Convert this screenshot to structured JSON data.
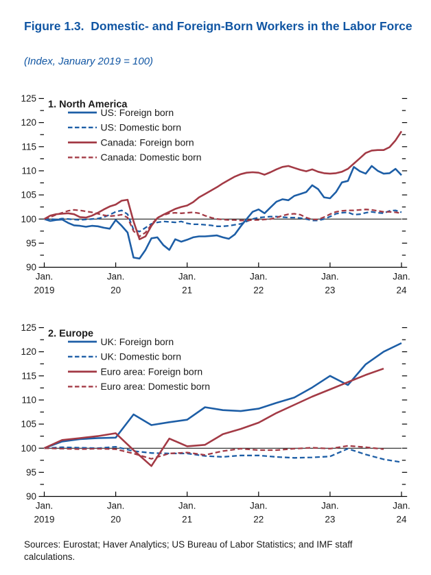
{
  "figure": {
    "title": "Figure 1.3.  Domestic- and Foreign-Born Workers in the Labor Force",
    "subtitle": "(Index, January 2019 = 100)",
    "sources": "Sources: Eurostat; Haver Analytics; US Bureau of Labor Statistics; and IMF staff calculations."
  },
  "colors": {
    "title_blue": "#1156a3",
    "blue": "#1d5ea6",
    "red": "#a33a45",
    "axis": "#000000",
    "text": "#1a1a1a"
  },
  "x_axis": {
    "unit": "months since January 2019",
    "tick_labels": [
      {
        "month": "Jan.",
        "year": "2019"
      },
      {
        "month": "Jan.",
        "year": "20"
      },
      {
        "month": "Jan.",
        "year": "21"
      },
      {
        "month": "Jan.",
        "year": "22"
      },
      {
        "month": "Jan.",
        "year": "23"
      },
      {
        "month": "Jan.",
        "year": "24"
      }
    ]
  },
  "y_axis": {
    "min": 90,
    "max": 125,
    "major_step": 5,
    "minor_step": 2.5,
    "baseline": 100
  },
  "chart_data": [
    {
      "type": "line",
      "panel_title": "1. North America",
      "frequency": "monthly",
      "x_start_month": 0,
      "x_step_months": 1,
      "ylim": [
        90,
        125
      ],
      "grid": false,
      "legend_position": "top-left",
      "series": [
        {
          "name": "US: Foreign born",
          "color": "blue",
          "line": "solid",
          "values": [
            100,
            99.6,
            99.8,
            99.9,
            99.2,
            98.7,
            98.6,
            98.4,
            98.6,
            98.5,
            98.2,
            98.0,
            99.8,
            98.6,
            97.2,
            92.0,
            91.8,
            93.6,
            96.0,
            96.2,
            94.6,
            93.6,
            95.8,
            95.3,
            95.7,
            96.2,
            96.4,
            96.4,
            96.5,
            96.6,
            96.2,
            95.9,
            96.8,
            98.5,
            100.0,
            101.5,
            102.0,
            101.2,
            102.4,
            103.6,
            104.1,
            103.9,
            104.8,
            105.2,
            105.6,
            107.0,
            106.2,
            104.5,
            104.3,
            105.6,
            107.6,
            107.9,
            110.8,
            109.9,
            109.4,
            111.0,
            110.0,
            109.4,
            109.5,
            110.4,
            109.1
          ]
        },
        {
          "name": "US: Domestic born",
          "color": "blue",
          "line": "dashed",
          "values": [
            100,
            100.0,
            99.9,
            100.1,
            100.0,
            99.9,
            99.8,
            99.9,
            100.0,
            100.1,
            100.4,
            100.9,
            101.5,
            101.8,
            101.0,
            97.8,
            97.4,
            98.2,
            99.0,
            99.3,
            99.5,
            99.4,
            99.3,
            99.5,
            99.1,
            98.9,
            98.9,
            98.8,
            98.7,
            98.5,
            98.5,
            98.6,
            98.8,
            99.0,
            99.5,
            100.0,
            100.3,
            100.4,
            100.5,
            100.5,
            100.4,
            100.3,
            100.3,
            100.2,
            100.0,
            99.7,
            99.7,
            100.0,
            100.5,
            101.1,
            101.3,
            101.4,
            100.9,
            101.0,
            101.3,
            101.5,
            101.3,
            101.2,
            101.7,
            101.8,
            101.4
          ]
        },
        {
          "name": "Canada: Foreign born",
          "color": "red",
          "line": "solid",
          "values": [
            100,
            100.7,
            101.0,
            101.1,
            101.2,
            101.0,
            100.4,
            100.3,
            100.7,
            101.3,
            102.0,
            102.6,
            103.0,
            103.8,
            104.0,
            99.5,
            95.8,
            96.4,
            98.6,
            100.2,
            100.9,
            101.5,
            102.1,
            102.5,
            102.8,
            103.5,
            104.5,
            105.2,
            105.9,
            106.6,
            107.4,
            108.1,
            108.8,
            109.3,
            109.6,
            109.7,
            109.6,
            109.2,
            109.7,
            110.3,
            110.8,
            111.0,
            110.6,
            110.2,
            109.9,
            110.3,
            109.8,
            109.5,
            109.4,
            109.5,
            109.8,
            110.4,
            111.5,
            112.6,
            113.7,
            114.2,
            114.3,
            114.3,
            114.9,
            116.3,
            118.2
          ]
        },
        {
          "name": "Canada: Domestic born",
          "color": "red",
          "line": "dashed",
          "values": [
            100,
            100.4,
            100.9,
            101.3,
            101.7,
            101.9,
            101.8,
            101.6,
            101.4,
            101.1,
            100.8,
            100.6,
            100.7,
            100.9,
            100.3,
            97.5,
            96.4,
            97.2,
            98.8,
            100.3,
            100.8,
            101.2,
            101.3,
            101.2,
            101.3,
            101.4,
            101.2,
            100.7,
            100.3,
            100.0,
            99.9,
            99.8,
            99.8,
            99.7,
            99.7,
            99.8,
            99.8,
            99.9,
            100.0,
            100.3,
            100.7,
            101.0,
            101.1,
            100.9,
            100.3,
            99.9,
            99.9,
            100.4,
            101.0,
            101.5,
            101.7,
            101.8,
            101.8,
            101.9,
            102.0,
            101.9,
            101.7,
            101.5,
            101.5,
            101.4,
            101.2
          ]
        }
      ]
    },
    {
      "type": "line",
      "panel_title": "2. Europe",
      "frequency": "quarterly",
      "x_start_month": 0,
      "x_step_months": 3,
      "ylim": [
        90,
        125
      ],
      "grid": false,
      "legend_position": "top-left",
      "series": [
        {
          "name": "UK: Foreign born",
          "color": "blue",
          "line": "solid",
          "values": [
            100.0,
            101.4,
            101.9,
            102.1,
            102.2,
            107.0,
            104.8,
            105.4,
            105.9,
            108.5,
            107.9,
            107.7,
            108.2,
            109.4,
            110.5,
            112.6,
            115.0,
            113.1,
            117.4,
            120.0,
            121.8
          ]
        },
        {
          "name": "UK: Domestic born",
          "color": "blue",
          "line": "dashed",
          "values": [
            100.0,
            100.2,
            100.1,
            100.0,
            100.3,
            99.4,
            99.0,
            98.9,
            98.9,
            98.4,
            98.2,
            98.5,
            98.5,
            98.2,
            98.0,
            98.1,
            98.3,
            99.9,
            98.7,
            97.7,
            97.1
          ]
        },
        {
          "name": "Euro area: Foreign born",
          "color": "red",
          "line": "solid",
          "values": [
            100.0,
            101.7,
            102.1,
            102.5,
            103.1,
            99.6,
            96.3,
            102.0,
            100.4,
            100.7,
            102.9,
            104.0,
            105.3,
            107.3,
            109.0,
            110.7,
            112.2,
            113.7,
            115.2,
            116.5
          ]
        },
        {
          "name": "Euro area: Domestic born",
          "color": "red",
          "line": "dashed",
          "values": [
            100.0,
            99.9,
            99.8,
            99.9,
            99.8,
            98.9,
            97.8,
            98.9,
            99.1,
            98.6,
            99.4,
            99.9,
            99.6,
            99.6,
            99.9,
            100.1,
            99.9,
            100.5,
            100.2,
            99.8
          ]
        }
      ]
    }
  ]
}
